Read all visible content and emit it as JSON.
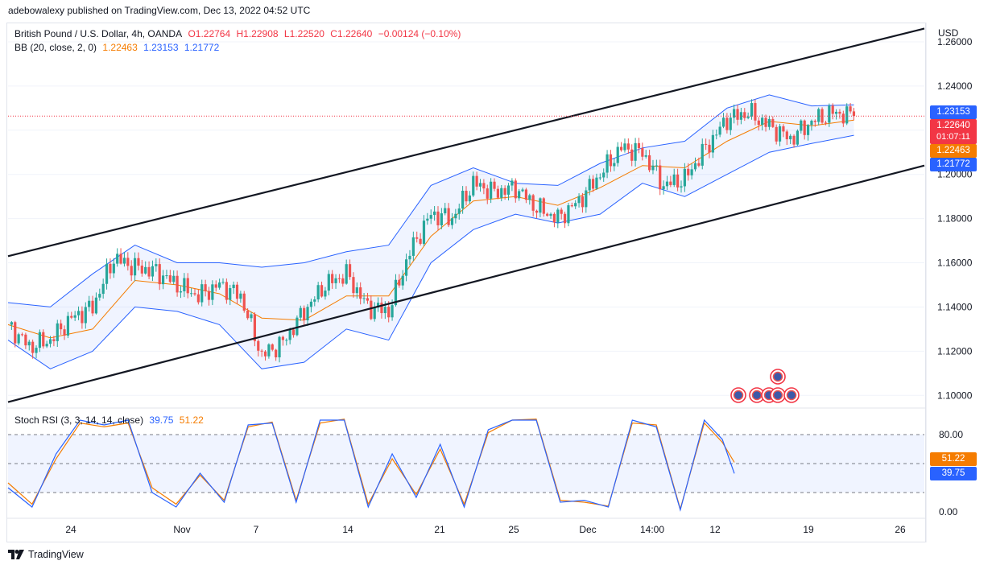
{
  "header": {
    "published": "adebowalexy published on TradingView.com, Dec 13, 2022 04:52 UTC"
  },
  "legend": {
    "symbol": "British Pound / U.S. Dollar, 4h, OANDA",
    "o": "O1.22764",
    "h": "H1.22908",
    "l": "L1.22520",
    "c": "C1.22640",
    "change": "−0.00124 (−0.10%)",
    "bb_label": "BB (20, close, 2, 0)",
    "bb_basis": "1.22463",
    "bb_upper": "1.23153",
    "bb_lower": "1.21772",
    "stoch_label": "Stoch RSI (3, 3, 14, 14, close)",
    "stoch_k": "39.75",
    "stoch_d": "51.22"
  },
  "price_axis": {
    "currency": "USD",
    "ticks": [
      "1.26000",
      "1.24000",
      "1.22000",
      "1.20000",
      "1.18000",
      "1.16000",
      "1.14000",
      "1.12000",
      "1.10000"
    ],
    "tags": {
      "upper": "1.23153",
      "last": "1.22640",
      "countdown": "01:07:11",
      "basis": "1.22463",
      "lower": "1.21772"
    }
  },
  "rsi_axis": {
    "ticks": [
      "80.00",
      "0.00"
    ],
    "tags": {
      "d": "51.22",
      "k": "39.75"
    }
  },
  "time_axis": {
    "labels": [
      "24",
      "Nov",
      "7",
      "14",
      "21",
      "25",
      "Dec",
      "14:00",
      "12",
      "19",
      "26"
    ]
  },
  "branding": {
    "name": "TradingView"
  },
  "colors": {
    "up": "#26a69a",
    "down": "#ef5350",
    "bb_band": "#2962ff",
    "bb_basis": "#f57c00",
    "stoch_k": "#2962ff",
    "stoch_d": "#f57c00",
    "last_price": "#f23645"
  },
  "chart_data": [
    {
      "type": "candlestick",
      "title": "British Pound / U.S. Dollar, 4h, OANDA",
      "ylabel": "USD",
      "ylim": [
        1.095,
        1.268
      ],
      "x_labels": [
        "24",
        "Nov",
        "7",
        "14",
        "21",
        "25",
        "Dec",
        "14:00",
        "12",
        "19",
        "26"
      ],
      "last_close": 1.2264,
      "bollinger": {
        "basis": 1.22463,
        "upper": 1.23153,
        "lower": 1.21772
      },
      "close_path": [
        [
          0,
          1.132
        ],
        [
          6,
          1.122
        ],
        [
          12,
          1.125
        ],
        [
          18,
          1.135
        ],
        [
          24,
          1.14
        ],
        [
          30,
          1.162
        ],
        [
          36,
          1.158
        ],
        [
          42,
          1.156
        ],
        [
          48,
          1.15
        ],
        [
          54,
          1.145
        ],
        [
          60,
          1.15
        ],
        [
          66,
          1.145
        ],
        [
          72,
          1.118
        ],
        [
          78,
          1.124
        ],
        [
          84,
          1.138
        ],
        [
          90,
          1.15
        ],
        [
          96,
          1.155
        ],
        [
          102,
          1.14
        ],
        [
          108,
          1.138
        ],
        [
          114,
          1.165
        ],
        [
          120,
          1.182
        ],
        [
          126,
          1.18
        ],
        [
          132,
          1.196
        ],
        [
          138,
          1.192
        ],
        [
          144,
          1.194
        ],
        [
          150,
          1.185
        ],
        [
          156,
          1.18
        ],
        [
          162,
          1.188
        ],
        [
          168,
          1.2
        ],
        [
          174,
          1.212
        ],
        [
          180,
          1.21
        ],
        [
          186,
          1.195
        ],
        [
          192,
          1.198
        ],
        [
          198,
          1.212
        ],
        [
          204,
          1.225
        ],
        [
          210,
          1.228
        ],
        [
          216,
          1.222
        ],
        [
          222,
          1.216
        ],
        [
          228,
          1.224
        ],
        [
          234,
          1.228
        ],
        [
          240,
          1.2264
        ]
      ],
      "bb_upper_path": [
        [
          0,
          1.142
        ],
        [
          12,
          1.14
        ],
        [
          24,
          1.155
        ],
        [
          36,
          1.168
        ],
        [
          48,
          1.16
        ],
        [
          60,
          1.16
        ],
        [
          72,
          1.158
        ],
        [
          84,
          1.16
        ],
        [
          96,
          1.165
        ],
        [
          108,
          1.168
        ],
        [
          120,
          1.195
        ],
        [
          132,
          1.203
        ],
        [
          144,
          1.196
        ],
        [
          156,
          1.195
        ],
        [
          168,
          1.205
        ],
        [
          180,
          1.212
        ],
        [
          192,
          1.215
        ],
        [
          204,
          1.23
        ],
        [
          216,
          1.236
        ],
        [
          228,
          1.231
        ],
        [
          240,
          1.2315
        ]
      ],
      "bb_lower_path": [
        [
          0,
          1.125
        ],
        [
          12,
          1.112
        ],
        [
          24,
          1.12
        ],
        [
          36,
          1.14
        ],
        [
          48,
          1.138
        ],
        [
          60,
          1.132
        ],
        [
          72,
          1.112
        ],
        [
          84,
          1.115
        ],
        [
          96,
          1.13
        ],
        [
          108,
          1.125
        ],
        [
          120,
          1.16
        ],
        [
          132,
          1.175
        ],
        [
          144,
          1.182
        ],
        [
          156,
          1.178
        ],
        [
          168,
          1.182
        ],
        [
          180,
          1.196
        ],
        [
          192,
          1.19
        ],
        [
          204,
          1.2
        ],
        [
          216,
          1.21
        ],
        [
          228,
          1.214
        ],
        [
          240,
          1.2177
        ]
      ],
      "bb_basis_path": [
        [
          0,
          1.132
        ],
        [
          12,
          1.126
        ],
        [
          24,
          1.13
        ],
        [
          36,
          1.152
        ],
        [
          48,
          1.15
        ],
        [
          60,
          1.146
        ],
        [
          72,
          1.135
        ],
        [
          84,
          1.134
        ],
        [
          96,
          1.145
        ],
        [
          108,
          1.145
        ],
        [
          120,
          1.172
        ],
        [
          132,
          1.188
        ],
        [
          144,
          1.19
        ],
        [
          156,
          1.186
        ],
        [
          168,
          1.194
        ],
        [
          180,
          1.204
        ],
        [
          192,
          1.203
        ],
        [
          204,
          1.215
        ],
        [
          216,
          1.224
        ],
        [
          228,
          1.222
        ],
        [
          240,
          1.2246
        ]
      ],
      "channel_lines": [
        {
          "from": [
            0,
            1.163
          ],
          "to": [
            260,
            1.266
          ]
        },
        {
          "from": [
            0,
            1.097
          ],
          "to": [
            260,
            1.204
          ]
        }
      ]
    },
    {
      "type": "line",
      "title": "Stoch RSI (3, 3, 14, 14, close)",
      "ylim": [
        -5,
        105
      ],
      "bands": [
        20,
        50,
        80
      ],
      "series": [
        {
          "name": "K",
          "values": [
            [
              0,
              25
            ],
            [
              8,
              5
            ],
            [
              16,
              60
            ],
            [
              24,
              95
            ],
            [
              32,
              90
            ],
            [
              40,
              95
            ],
            [
              48,
              20
            ],
            [
              56,
              5
            ],
            [
              64,
              40
            ],
            [
              72,
              10
            ],
            [
              80,
              90
            ],
            [
              88,
              92
            ],
            [
              96,
              10
            ],
            [
              104,
              95
            ],
            [
              112,
              95
            ],
            [
              120,
              5
            ],
            [
              128,
              60
            ],
            [
              136,
              15
            ],
            [
              144,
              70
            ],
            [
              152,
              5
            ],
            [
              160,
              85
            ],
            [
              168,
              95
            ],
            [
              176,
              95
            ],
            [
              184,
              10
            ],
            [
              192,
              12
            ],
            [
              200,
              5
            ],
            [
              208,
              95
            ],
            [
              216,
              88
            ],
            [
              224,
              2
            ],
            [
              232,
              95
            ],
            [
              238,
              75
            ],
            [
              242,
              39.75
            ]
          ]
        },
        {
          "name": "D",
          "values": [
            [
              0,
              30
            ],
            [
              8,
              8
            ],
            [
              16,
              55
            ],
            [
              24,
              92
            ],
            [
              32,
              88
            ],
            [
              40,
              92
            ],
            [
              48,
              25
            ],
            [
              56,
              8
            ],
            [
              64,
              38
            ],
            [
              72,
              12
            ],
            [
              80,
              88
            ],
            [
              88,
              93
            ],
            [
              96,
              12
            ],
            [
              104,
              92
            ],
            [
              112,
              96
            ],
            [
              120,
              8
            ],
            [
              128,
              55
            ],
            [
              136,
              18
            ],
            [
              144,
              65
            ],
            [
              152,
              8
            ],
            [
              160,
              82
            ],
            [
              168,
              95
            ],
            [
              176,
              96
            ],
            [
              184,
              12
            ],
            [
              192,
              10
            ],
            [
              200,
              6
            ],
            [
              208,
              92
            ],
            [
              216,
              90
            ],
            [
              224,
              3
            ],
            [
              232,
              92
            ],
            [
              238,
              72
            ],
            [
              242,
              51.22
            ]
          ]
        }
      ]
    }
  ]
}
